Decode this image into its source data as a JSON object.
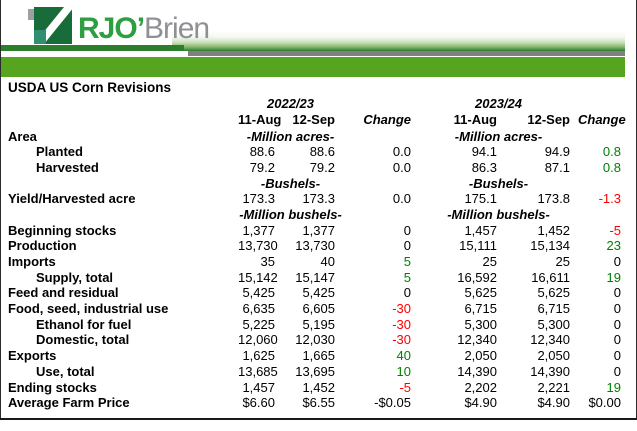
{
  "logo": {
    "text_primary": "RJO",
    "apostrophe": "’",
    "text_secondary": "Brien"
  },
  "title": "USDA US Corn Revisions",
  "colors": {
    "banner_green": "#56a51f",
    "banner_dark_green": "#2c7d2c",
    "divider_gray": "#808080",
    "logo_green": "#2f9e41",
    "logo_gray": "#8e9093",
    "positive_change": "#008000",
    "negative_change": "#ff0000"
  },
  "table": {
    "year_groups": [
      "2022/23",
      "2023/24"
    ],
    "col_headers": [
      "11-Aug",
      "12-Sep",
      "Change"
    ],
    "rows": [
      {
        "type": "units",
        "label": "Area",
        "unit": "-Million acres-"
      },
      {
        "type": "data",
        "label": "Planted",
        "indent": true,
        "values": [
          "88.6",
          "88.6",
          "0.0",
          "94.1",
          "94.9",
          "0.8"
        ],
        "change_tone": [
          "neutral",
          "pos"
        ]
      },
      {
        "type": "data",
        "label": "Harvested",
        "indent": true,
        "values": [
          "79.2",
          "79.2",
          "0.0",
          "86.3",
          "87.1",
          "0.8"
        ],
        "change_tone": [
          "neutral",
          "pos"
        ]
      },
      {
        "type": "units",
        "label": "",
        "unit": "-Bushels-"
      },
      {
        "type": "data",
        "label": "Yield/Harvested acre",
        "indent": false,
        "values": [
          "173.3",
          "173.3",
          "0.0",
          "175.1",
          "173.8",
          "-1.3"
        ],
        "change_tone": [
          "neutral",
          "neg"
        ]
      },
      {
        "type": "units",
        "label": "",
        "unit": "-Million bushels-"
      },
      {
        "type": "data",
        "label": "Beginning stocks",
        "indent": false,
        "values": [
          "1,377",
          "1,377",
          "0",
          "1,457",
          "1,452",
          "-5"
        ],
        "change_tone": [
          "neutral",
          "neg"
        ]
      },
      {
        "type": "data",
        "label": "Production",
        "indent": false,
        "values": [
          "13,730",
          "13,730",
          "0",
          "15,111",
          "15,134",
          "23"
        ],
        "change_tone": [
          "neutral",
          "pos"
        ]
      },
      {
        "type": "data",
        "label": "Imports",
        "indent": false,
        "values": [
          "35",
          "40",
          "5",
          "25",
          "25",
          "0"
        ],
        "change_tone": [
          "pos",
          "neutral"
        ]
      },
      {
        "type": "data",
        "label": "Supply, total",
        "indent": true,
        "values": [
          "15,142",
          "15,147",
          "5",
          "16,592",
          "16,611",
          "19"
        ],
        "change_tone": [
          "pos",
          "pos"
        ]
      },
      {
        "type": "data",
        "label": "Feed and residual",
        "indent": false,
        "values": [
          "5,425",
          "5,425",
          "0",
          "5,625",
          "5,625",
          "0"
        ],
        "change_tone": [
          "neutral",
          "neutral"
        ]
      },
      {
        "type": "data",
        "label": "Food, seed, industrial use",
        "indent": false,
        "values": [
          "6,635",
          "6,605",
          "-30",
          "6,715",
          "6,715",
          "0"
        ],
        "change_tone": [
          "neg",
          "neutral"
        ]
      },
      {
        "type": "data",
        "label": "Ethanol for fuel",
        "indent": true,
        "values": [
          "5,225",
          "5,195",
          "-30",
          "5,300",
          "5,300",
          "0"
        ],
        "change_tone": [
          "neg",
          "neutral"
        ]
      },
      {
        "type": "data",
        "label": "Domestic, total",
        "indent": true,
        "values": [
          "12,060",
          "12,030",
          "-30",
          "12,340",
          "12,340",
          "0"
        ],
        "change_tone": [
          "neg",
          "neutral"
        ]
      },
      {
        "type": "data",
        "label": "Exports",
        "indent": false,
        "values": [
          "1,625",
          "1,665",
          "40",
          "2,050",
          "2,050",
          "0"
        ],
        "change_tone": [
          "pos",
          "neutral"
        ]
      },
      {
        "type": "data",
        "label": "Use, total",
        "indent": true,
        "values": [
          "13,685",
          "13,695",
          "10",
          "14,390",
          "14,390",
          "0"
        ],
        "change_tone": [
          "pos",
          "neutral"
        ]
      },
      {
        "type": "data",
        "label": "Ending stocks",
        "indent": false,
        "values": [
          "1,457",
          "1,452",
          "-5",
          "2,202",
          "2,221",
          "19"
        ],
        "change_tone": [
          "neg",
          "pos"
        ]
      },
      {
        "type": "data",
        "label": "Average Farm Price",
        "indent": false,
        "values": [
          "$6.60",
          "$6.55",
          "-$0.05",
          "$4.90",
          "$4.90",
          "$0.00"
        ],
        "change_tone": [
          "neutral",
          "neutral"
        ]
      }
    ]
  }
}
